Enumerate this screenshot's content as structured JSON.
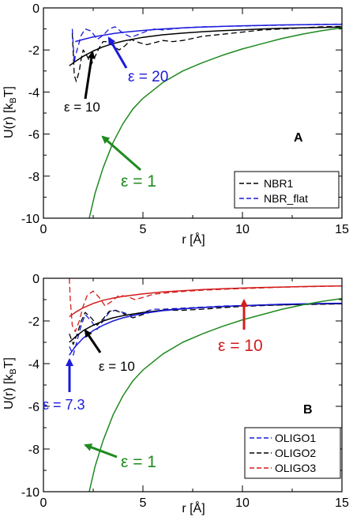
{
  "chart_data": [
    {
      "type": "line",
      "panel_label": "A",
      "xlabel": "r [Å]",
      "ylabel": "U(r) [k_BT]",
      "ylabel_main": "U(r) [k",
      "ylabel_sub": "B",
      "ylabel_end": "T]",
      "xlim": [
        0,
        15
      ],
      "ylim": [
        -10,
        0
      ],
      "xticks": [
        "0",
        "5",
        "10",
        "15"
      ],
      "yticks": [
        "0",
        "-2",
        "-4",
        "-6",
        "-8",
        "-10"
      ],
      "legend": [
        "NBR1",
        "NBR_flat"
      ],
      "colors": {
        "black": "#000000",
        "blue": "#1a1adc",
        "green": "#1f8a1f"
      },
      "series": [
        {
          "name": "NBR1",
          "color": "#000000",
          "style": "dashed",
          "x": [
            1.45,
            1.55,
            1.65,
            1.8,
            1.9,
            2.0,
            2.2,
            2.4,
            2.6,
            2.8,
            3.0,
            3.2,
            3.5,
            3.8,
            4.1,
            4.4,
            4.8,
            5.2,
            5.6,
            6.0,
            6.5,
            7.0,
            7.5,
            8.0,
            9.0,
            10.0,
            11.0,
            12.0,
            13.0,
            14.0,
            15.0
          ],
          "y": [
            -1.2,
            -3.2,
            -3.5,
            -3.0,
            -2.4,
            -2.0,
            -2.3,
            -2.7,
            -2.3,
            -1.9,
            -1.6,
            -1.6,
            -1.8,
            -2.0,
            -1.8,
            -1.5,
            -1.65,
            -1.75,
            -1.65,
            -1.55,
            -1.6,
            -1.55,
            -1.45,
            -1.35,
            -1.25,
            -1.15,
            -1.05,
            -1.0,
            -0.95,
            -0.9,
            -0.88
          ]
        },
        {
          "name": "NBR_flat",
          "color": "#1a1adc",
          "style": "dashed",
          "x": [
            1.45,
            1.55,
            1.6,
            1.75,
            1.9,
            2.1,
            2.4,
            2.7,
            3.0,
            3.3,
            3.6,
            4.0,
            4.4,
            4.8,
            5.2,
            5.6,
            6.0,
            7.0,
            8.0,
            9.0,
            10.0,
            11.0,
            12.0,
            13.0,
            14.0,
            15.0
          ],
          "y": [
            -1.0,
            -2.6,
            -2.3,
            -1.8,
            -1.3,
            -1.0,
            -1.1,
            -1.5,
            -1.3,
            -1.0,
            -0.9,
            -1.2,
            -1.4,
            -1.25,
            -1.1,
            -1.0,
            -1.05,
            -0.95,
            -0.9,
            -0.88,
            -0.86,
            -0.84,
            -0.82,
            -0.8,
            -0.78,
            -0.77
          ]
        },
        {
          "name": "NBR1 ε=10",
          "color": "#000000",
          "style": "solid",
          "x": [
            1.3,
            1.6,
            2.0,
            2.5,
            3.0,
            3.5,
            4.0,
            5.0,
            6.0,
            7.0,
            8.0,
            9.0,
            10.0,
            11.0,
            12.0,
            13.0,
            14.0,
            15.0
          ],
          "y": [
            -2.75,
            -2.55,
            -2.3,
            -2.05,
            -1.85,
            -1.7,
            -1.58,
            -1.4,
            -1.28,
            -1.2,
            -1.13,
            -1.08,
            -1.04,
            -1.0,
            -0.97,
            -0.95,
            -0.93,
            -0.91
          ]
        },
        {
          "name": "NBR_flat ε=20",
          "color": "#1a1adc",
          "style": "solid",
          "x": [
            1.6,
            2.0,
            2.5,
            3.0,
            3.5,
            4.0,
            5.0,
            6.0,
            7.0,
            8.0,
            9.0,
            10.0,
            11.0,
            12.0,
            13.0,
            14.0,
            15.0
          ],
          "y": [
            -1.6,
            -1.5,
            -1.38,
            -1.3,
            -1.22,
            -1.16,
            -1.07,
            -1.0,
            -0.95,
            -0.91,
            -0.88,
            -0.85,
            -0.83,
            -0.81,
            -0.8,
            -0.79,
            -0.78
          ]
        },
        {
          "name": "ε=1",
          "color": "#1f8a1f",
          "style": "solid",
          "x": [
            2.3,
            2.6,
            3.0,
            3.5,
            4.0,
            4.5,
            5.0,
            6.0,
            7.0,
            8.0,
            9.0,
            10.0,
            11.0,
            12.0,
            13.0,
            14.0,
            15.0
          ],
          "y": [
            -10.0,
            -8.8,
            -7.6,
            -6.4,
            -5.5,
            -4.8,
            -4.3,
            -3.55,
            -3.0,
            -2.6,
            -2.25,
            -1.95,
            -1.7,
            -1.45,
            -1.25,
            -1.08,
            -0.95
          ]
        }
      ],
      "annotations": [
        {
          "text": "ε = 20",
          "color": "#1a1adc"
        },
        {
          "text": "ε = 10",
          "color": "#000000"
        },
        {
          "text": "ε = 1",
          "color": "#1f8a1f"
        }
      ]
    },
    {
      "type": "line",
      "panel_label": "B",
      "xlabel": "r [Å]",
      "ylabel": "U(r) [k_BT]",
      "ylabel_main": "U(r) [k",
      "ylabel_sub": "B",
      "ylabel_end": "T]",
      "xlim": [
        0,
        15
      ],
      "ylim": [
        -10,
        0
      ],
      "xticks": [
        "0",
        "5",
        "10",
        "15"
      ],
      "yticks": [
        "0",
        "-2",
        "-4",
        "-6",
        "-8",
        "-10"
      ],
      "legend": [
        "OLIGO1",
        "OLIGO2",
        "OLIGO3"
      ],
      "colors": {
        "black": "#000000",
        "blue": "#1a1adc",
        "red": "#d41c1c",
        "green": "#1f8a1f"
      },
      "series": [
        {
          "name": "OLIGO1",
          "color": "#1a1adc",
          "style": "dashed",
          "x": [
            1.3,
            1.5,
            1.7,
            1.9,
            2.1,
            2.4,
            2.7,
            3.0,
            3.3,
            3.6,
            4.0,
            4.5,
            5.0,
            5.5,
            6.0,
            7.0,
            8.0,
            9.0,
            10.0,
            11.0,
            12.0,
            13.0,
            14.0,
            15.0
          ],
          "y": [
            -3.2,
            -3.6,
            -2.9,
            -2.2,
            -1.7,
            -2.0,
            -2.4,
            -2.0,
            -1.6,
            -1.5,
            -1.6,
            -1.75,
            -1.6,
            -1.45,
            -1.45,
            -1.4,
            -1.35,
            -1.3,
            -1.28,
            -1.25,
            -1.22,
            -1.2,
            -1.2,
            -1.18
          ]
        },
        {
          "name": "OLIGO2",
          "color": "#000000",
          "style": "dashed",
          "x": [
            1.3,
            1.5,
            1.7,
            1.9,
            2.1,
            2.4,
            2.7,
            3.0,
            3.3,
            3.6,
            4.0,
            4.5,
            5.0,
            5.5,
            6.0,
            7.0,
            8.0,
            9.0,
            10.0,
            11.0,
            12.0,
            13.0,
            14.0,
            15.0
          ],
          "y": [
            -2.6,
            -3.1,
            -2.6,
            -2.0,
            -1.6,
            -1.85,
            -2.2,
            -1.9,
            -1.55,
            -1.5,
            -1.65,
            -1.85,
            -1.7,
            -1.55,
            -1.5,
            -1.5,
            -1.45,
            -1.38,
            -1.32,
            -1.28,
            -1.25,
            -1.23,
            -1.22,
            -1.2
          ]
        },
        {
          "name": "OLIGO3",
          "color": "#d41c1c",
          "style": "dashed",
          "x": [
            1.3,
            1.35,
            1.45,
            1.6,
            1.8,
            2.0,
            2.2,
            2.5,
            2.8,
            3.1,
            3.4,
            3.8,
            4.2,
            4.6,
            5.0,
            5.5,
            6.0,
            7.0,
            8.0,
            9.0,
            10.0,
            11.0,
            12.0,
            13.0,
            14.0,
            15.0
          ],
          "y": [
            0.0,
            -1.0,
            -2.2,
            -2.5,
            -2.0,
            -1.3,
            -0.8,
            -0.6,
            -0.9,
            -1.3,
            -1.1,
            -0.8,
            -0.85,
            -1.0,
            -0.9,
            -0.75,
            -0.7,
            -0.62,
            -0.56,
            -0.52,
            -0.48,
            -0.45,
            -0.42,
            -0.4,
            -0.38,
            -0.36
          ]
        },
        {
          "name": "OLIGO3 ε=10",
          "color": "#d41c1c",
          "style": "solid",
          "x": [
            1.3,
            1.6,
            2.0,
            2.5,
            3.0,
            3.5,
            4.0,
            5.0,
            6.0,
            7.0,
            8.0,
            9.0,
            10.0,
            11.0,
            12.0,
            13.0,
            14.0,
            15.0
          ],
          "y": [
            -1.8,
            -1.6,
            -1.38,
            -1.18,
            -1.03,
            -0.93,
            -0.85,
            -0.73,
            -0.64,
            -0.58,
            -0.53,
            -0.49,
            -0.46,
            -0.43,
            -0.41,
            -0.39,
            -0.37,
            -0.36
          ]
        },
        {
          "name": "OLIGO2 ε=10",
          "color": "#000000",
          "style": "solid",
          "x": [
            1.3,
            1.6,
            2.0,
            2.5,
            3.0,
            3.5,
            4.0,
            5.0,
            6.0,
            7.0,
            8.0,
            9.0,
            10.0,
            11.0,
            12.0,
            13.0,
            14.0,
            15.0
          ],
          "y": [
            -3.0,
            -2.75,
            -2.45,
            -2.2,
            -2.0,
            -1.85,
            -1.75,
            -1.6,
            -1.5,
            -1.43,
            -1.37,
            -1.33,
            -1.29,
            -1.26,
            -1.24,
            -1.22,
            -1.2,
            -1.19
          ]
        },
        {
          "name": "OLIGO1 ε=7.3",
          "color": "#1a1adc",
          "style": "solid",
          "x": [
            1.3,
            1.6,
            2.0,
            2.5,
            3.0,
            3.5,
            4.0,
            5.0,
            6.0,
            7.0,
            8.0,
            9.0,
            10.0,
            11.0,
            12.0,
            13.0,
            14.0,
            15.0
          ],
          "y": [
            -3.6,
            -3.2,
            -2.8,
            -2.45,
            -2.2,
            -2.0,
            -1.85,
            -1.65,
            -1.52,
            -1.43,
            -1.37,
            -1.32,
            -1.28,
            -1.25,
            -1.22,
            -1.2,
            -1.18,
            -1.17
          ]
        },
        {
          "name": "ε=1",
          "color": "#1f8a1f",
          "style": "solid",
          "x": [
            2.3,
            2.6,
            3.0,
            3.5,
            4.0,
            4.5,
            5.0,
            6.0,
            7.0,
            8.0,
            9.0,
            10.0,
            11.0,
            12.0,
            13.0,
            14.0,
            15.0
          ],
          "y": [
            -10.0,
            -8.8,
            -7.6,
            -6.4,
            -5.5,
            -4.8,
            -4.3,
            -3.55,
            -3.0,
            -2.6,
            -2.25,
            -1.95,
            -1.7,
            -1.45,
            -1.25,
            -1.08,
            -0.95
          ]
        }
      ],
      "annotations": [
        {
          "text": "ε = 10",
          "color": "#d41c1c"
        },
        {
          "text": "ε = 10",
          "color": "#000000"
        },
        {
          "text": "ε = 7.3",
          "color": "#1a1adc"
        },
        {
          "text": "ε = 1",
          "color": "#1f8a1f"
        }
      ]
    }
  ]
}
